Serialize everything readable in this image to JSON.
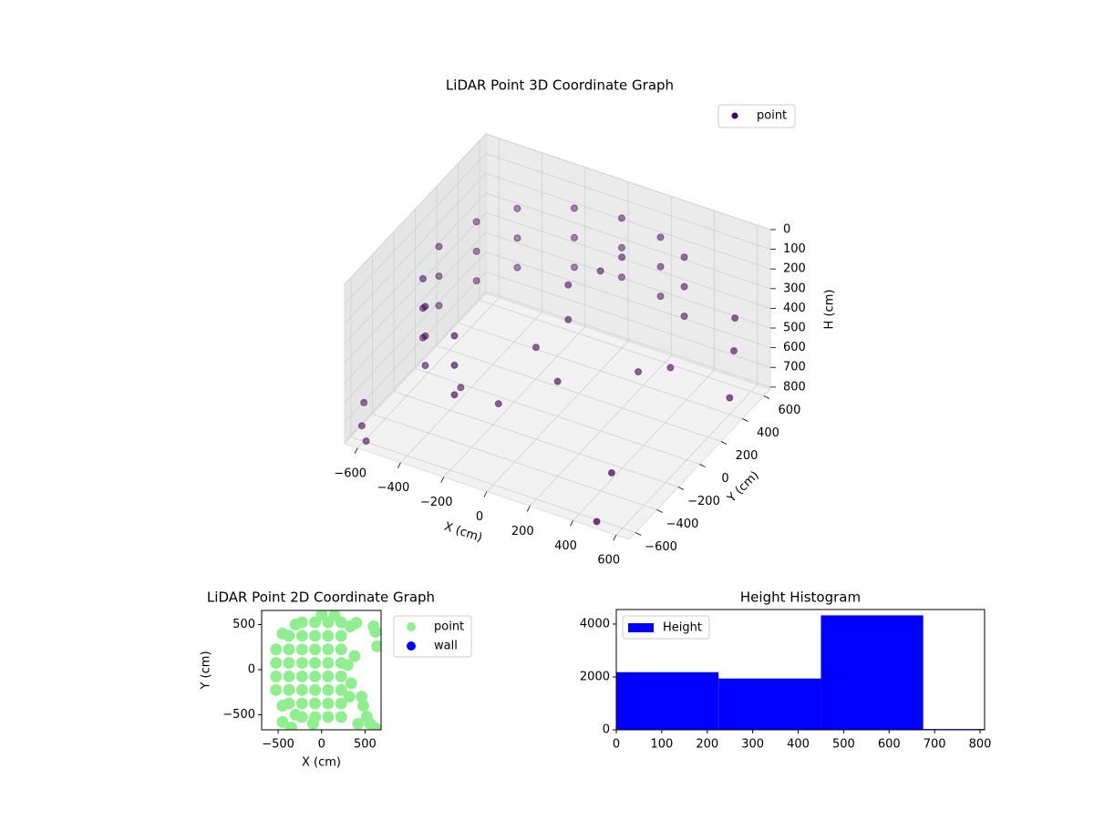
{
  "chart_data": [
    {
      "type": "scatter3d",
      "title": "LiDAR Point 3D Coordinate Graph",
      "xlabel": "X (cm)",
      "ylabel": "Y (cm)",
      "zlabel": "H (cm)",
      "xlim": [
        -660,
        660
      ],
      "ylim": [
        -660,
        660
      ],
      "zlim": [
        810,
        0
      ],
      "grid": true,
      "xticks": [
        {
          "value": -600,
          "label": "−600"
        },
        {
          "value": -400,
          "label": "−400"
        },
        {
          "value": -200,
          "label": "−200"
        },
        0,
        200,
        400,
        600
      ],
      "yticks": [
        {
          "value": -600,
          "label": "−600"
        },
        {
          "value": -400,
          "label": "−400"
        },
        {
          "value": -200,
          "label": "−200"
        },
        0,
        200,
        400,
        600
      ],
      "zticks": [
        0,
        100,
        200,
        300,
        400,
        500,
        600,
        700,
        800
      ],
      "series": [
        {
          "name": "point",
          "color": "#440154",
          "x": [
            -550,
            -500,
            -400,
            -200,
            0,
            200,
            350,
            -500,
            -400,
            -200,
            -550,
            -500,
            -400,
            -200,
            0,
            200,
            350,
            -500,
            -400,
            -200,
            -550,
            -500,
            -400,
            -200,
            0,
            200,
            350,
            -500,
            -400,
            -200,
            100,
            0,
            150,
            50,
            -50,
            100,
            600,
            620,
            650,
            -600,
            -560,
            500,
            400,
            300,
            -300,
            -100,
            450,
            -650
          ],
          "y": [
            0,
            250,
            430,
            560,
            600,
            560,
            480,
            -250,
            -430,
            -560,
            0,
            250,
            430,
            560,
            600,
            560,
            480,
            -250,
            -430,
            -560,
            0,
            250,
            430,
            560,
            600,
            560,
            480,
            -250,
            -430,
            -560,
            200,
            100,
            300,
            0,
            -100,
            -200,
            450,
            400,
            300,
            -620,
            -660,
            -640,
            250,
            150,
            -300,
            -350,
            -400,
            -500
          ],
          "z": [
            150,
            150,
            150,
            150,
            150,
            150,
            150,
            150,
            150,
            150,
            300,
            300,
            300,
            300,
            300,
            300,
            300,
            300,
            300,
            300,
            450,
            450,
            450,
            450,
            450,
            450,
            450,
            450,
            450,
            450,
            150,
            200,
            120,
            300,
            420,
            480,
            350,
            480,
            650,
            720,
            760,
            790,
            560,
            560,
            600,
            580,
            700,
            690
          ]
        }
      ]
    },
    {
      "type": "scatter",
      "title": "LiDAR Point 2D Coordinate Graph",
      "xlabel": "X (cm)",
      "ylabel": "Y (cm)",
      "xlim": [
        -690,
        685
      ],
      "ylim": [
        -667,
        657
      ],
      "xticks": [
        {
          "value": -500,
          "label": "−500"
        },
        0,
        500
      ],
      "yticks": [
        {
          "value": -500,
          "label": "−500"
        },
        0,
        500
      ],
      "series": [
        {
          "name": "point",
          "color": "#90ee90",
          "x": [
            -525,
            -525,
            -525,
            -525,
            -375,
            -375,
            -375,
            -375,
            -375,
            -375,
            -225,
            -225,
            -225,
            -225,
            -225,
            -225,
            -225,
            -225,
            -75,
            -75,
            -75,
            -75,
            -75,
            -75,
            -75,
            -75,
            75,
            75,
            75,
            75,
            75,
            75,
            75,
            75,
            225,
            225,
            225,
            225,
            225,
            225,
            225,
            225,
            -450,
            -450,
            -300,
            -300,
            0,
            150,
            -100,
            320,
            340,
            300,
            330,
            400,
            380,
            460,
            480,
            520,
            560,
            620,
            620,
            640,
            600,
            420,
            -450,
            -350
          ],
          "y": [
            -225,
            -75,
            75,
            225,
            -375,
            -225,
            -75,
            75,
            225,
            375,
            -525,
            -375,
            -225,
            -75,
            75,
            225,
            375,
            525,
            -525,
            -375,
            -225,
            -75,
            75,
            225,
            375,
            525,
            -525,
            -375,
            -225,
            -75,
            75,
            225,
            375,
            525,
            -525,
            -375,
            -225,
            -75,
            75,
            225,
            375,
            525,
            -400,
            400,
            -500,
            500,
            610,
            600,
            -600,
            -300,
            -150,
            50,
            480,
            520,
            150,
            -300,
            -400,
            -520,
            -600,
            -650,
            420,
            260,
            480,
            -600,
            -580,
            -640
          ]
        },
        {
          "name": "wall",
          "color": "#0000ff",
          "x": [],
          "y": []
        }
      ]
    },
    {
      "type": "histogram",
      "title": "Height Histogram",
      "name": "Height",
      "color": "#0000ff",
      "bins": [
        0,
        225,
        450,
        675,
        900
      ],
      "values": [
        2180,
        1940,
        4330,
        30
      ],
      "xlim": [
        0,
        810
      ],
      "ylim": [
        0,
        4550
      ],
      "xticks": [
        0,
        100,
        200,
        300,
        400,
        500,
        600,
        700,
        800
      ],
      "yticks": [
        0,
        2000,
        4000
      ]
    }
  ]
}
